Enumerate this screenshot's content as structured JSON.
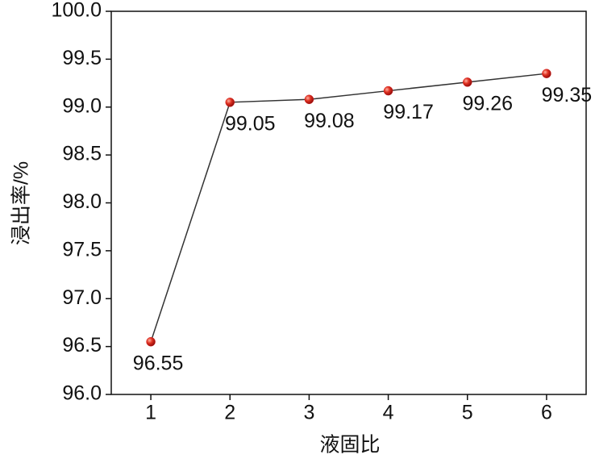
{
  "chart_data": {
    "type": "line",
    "x_label": "液固比",
    "y_label": "浸出率/%",
    "x": [
      1,
      2,
      3,
      4,
      5,
      6
    ],
    "series": [
      {
        "color": "#d42020",
        "values": [
          96.55,
          99.05,
          99.08,
          99.17,
          99.26,
          99.35
        ]
      }
    ],
    "xlim": [
      0.5,
      6.5
    ],
    "xticks": [
      1,
      2,
      3,
      4,
      5,
      6
    ],
    "ylim": [
      96.0,
      100.0
    ],
    "yticks": [
      {
        "value": 96.0,
        "label": "96.0"
      },
      {
        "value": 96.5,
        "label": "96.5"
      },
      {
        "value": 97.0,
        "label": "97.0"
      },
      {
        "value": 97.5,
        "label": "97.5"
      },
      {
        "value": 98.0,
        "label": "98.0"
      },
      {
        "value": 98.5,
        "label": "98.5"
      },
      {
        "value": 99.0,
        "label": "99.0"
      },
      {
        "value": 99.5,
        "label": "99.5"
      },
      {
        "value": 100.0,
        "label": "100.0"
      }
    ],
    "grid": false,
    "data_labels": true
  }
}
